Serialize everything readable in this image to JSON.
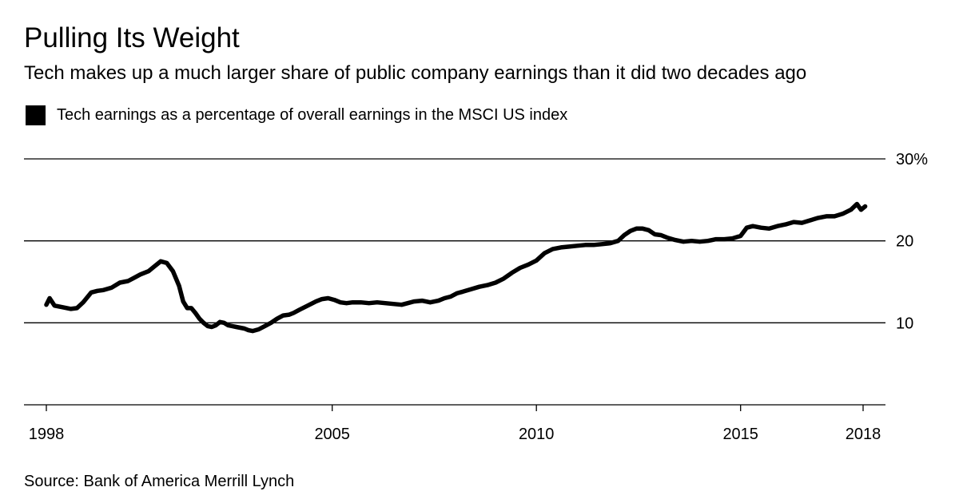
{
  "header": {
    "title": "Pulling Its Weight",
    "subtitle": "Tech makes up a much larger share of public company earnings than it did two decades ago"
  },
  "legend": {
    "label": "Tech earnings as a percentage of overall earnings in the MSCI US index",
    "color": "#000000"
  },
  "footer": {
    "source": "Source: Bank of America Merrill Lynch"
  },
  "chart_data": {
    "type": "line",
    "title": "Pulling Its Weight",
    "subtitle": "Tech makes up a much larger share of public company earnings than it did two decades ago",
    "xlabel": "",
    "ylabel": "",
    "xlim": [
      1998,
      2018.5
    ],
    "ylim": [
      0,
      30
    ],
    "x_ticks": [
      {
        "value": 1998,
        "label": "1998"
      },
      {
        "value": 2005,
        "label": "2005"
      },
      {
        "value": 2010,
        "label": "2010"
      },
      {
        "value": 2015,
        "label": "2015"
      },
      {
        "value": 2018,
        "label": "2018"
      }
    ],
    "y_ticks": [
      {
        "value": 30,
        "label": "30%"
      },
      {
        "value": 20,
        "label": "20"
      },
      {
        "value": 10,
        "label": "10"
      }
    ],
    "grid": true,
    "legend_position": "top-left",
    "series": [
      {
        "name": "Tech earnings as a percentage of overall earnings in the MSCI US index",
        "color": "#000000",
        "x": [
          1998.0,
          1998.08,
          1998.2,
          1998.4,
          1998.6,
          1998.75,
          1998.9,
          1999.1,
          1999.25,
          1999.4,
          1999.6,
          1999.8,
          2000.0,
          2000.15,
          2000.3,
          2000.5,
          2000.65,
          2000.8,
          2000.95,
          2001.1,
          2001.25,
          2001.35,
          2001.45,
          2001.55,
          2001.65,
          2001.75,
          2001.85,
          2001.95,
          2002.05,
          2002.15,
          2002.25,
          2002.35,
          2002.45,
          2002.55,
          2002.65,
          2002.75,
          2002.85,
          2002.95,
          2003.05,
          2003.2,
          2003.35,
          2003.5,
          2003.65,
          2003.8,
          2003.95,
          2004.05,
          2004.2,
          2004.4,
          2004.6,
          2004.75,
          2004.9,
          2005.05,
          2005.2,
          2005.35,
          2005.5,
          2005.7,
          2005.9,
          2006.1,
          2006.3,
          2006.5,
          2006.7,
          2006.85,
          2007.0,
          2007.2,
          2007.4,
          2007.6,
          2007.75,
          2007.9,
          2008.05,
          2008.2,
          2008.4,
          2008.6,
          2008.8,
          2009.0,
          2009.2,
          2009.4,
          2009.6,
          2009.8,
          2010.0,
          2010.2,
          2010.4,
          2010.6,
          2010.8,
          2011.0,
          2011.2,
          2011.4,
          2011.6,
          2011.8,
          2012.0,
          2012.15,
          2012.3,
          2012.45,
          2012.6,
          2012.75,
          2012.9,
          2013.05,
          2013.2,
          2013.4,
          2013.6,
          2013.8,
          2014.0,
          2014.2,
          2014.4,
          2014.6,
          2014.8,
          2015.0,
          2015.15,
          2015.3,
          2015.5,
          2015.7,
          2015.9,
          2016.1,
          2016.3,
          2016.5,
          2016.7,
          2016.9,
          2017.1,
          2017.3,
          2017.5,
          2017.7,
          2017.85,
          2017.95,
          2018.0,
          2018.05
        ],
        "values": [
          12.2,
          13.0,
          12.1,
          11.9,
          11.7,
          11.8,
          12.5,
          13.7,
          13.9,
          14.0,
          14.3,
          14.9,
          15.1,
          15.5,
          15.9,
          16.3,
          16.9,
          17.5,
          17.3,
          16.3,
          14.5,
          12.6,
          11.8,
          11.8,
          11.2,
          10.5,
          10.0,
          9.6,
          9.5,
          9.7,
          10.1,
          10.0,
          9.7,
          9.6,
          9.5,
          9.4,
          9.3,
          9.1,
          9.0,
          9.2,
          9.6,
          10.0,
          10.5,
          10.9,
          11.0,
          11.2,
          11.6,
          12.1,
          12.6,
          12.9,
          13.0,
          12.8,
          12.5,
          12.4,
          12.5,
          12.5,
          12.4,
          12.5,
          12.4,
          12.3,
          12.2,
          12.4,
          12.6,
          12.7,
          12.5,
          12.7,
          13.0,
          13.2,
          13.6,
          13.8,
          14.1,
          14.4,
          14.6,
          14.9,
          15.4,
          16.1,
          16.7,
          17.1,
          17.6,
          18.5,
          19.0,
          19.2,
          19.3,
          19.4,
          19.5,
          19.5,
          19.6,
          19.7,
          20.0,
          20.7,
          21.2,
          21.5,
          21.5,
          21.3,
          20.8,
          20.7,
          20.4,
          20.1,
          19.9,
          20.0,
          19.9,
          20.0,
          20.2,
          20.2,
          20.3,
          20.6,
          21.6,
          21.8,
          21.6,
          21.5,
          21.8,
          22.0,
          22.3,
          22.2,
          22.5,
          22.8,
          23.0,
          23.0,
          23.3,
          23.8,
          24.5,
          23.8,
          24.0,
          24.2
        ]
      }
    ]
  }
}
